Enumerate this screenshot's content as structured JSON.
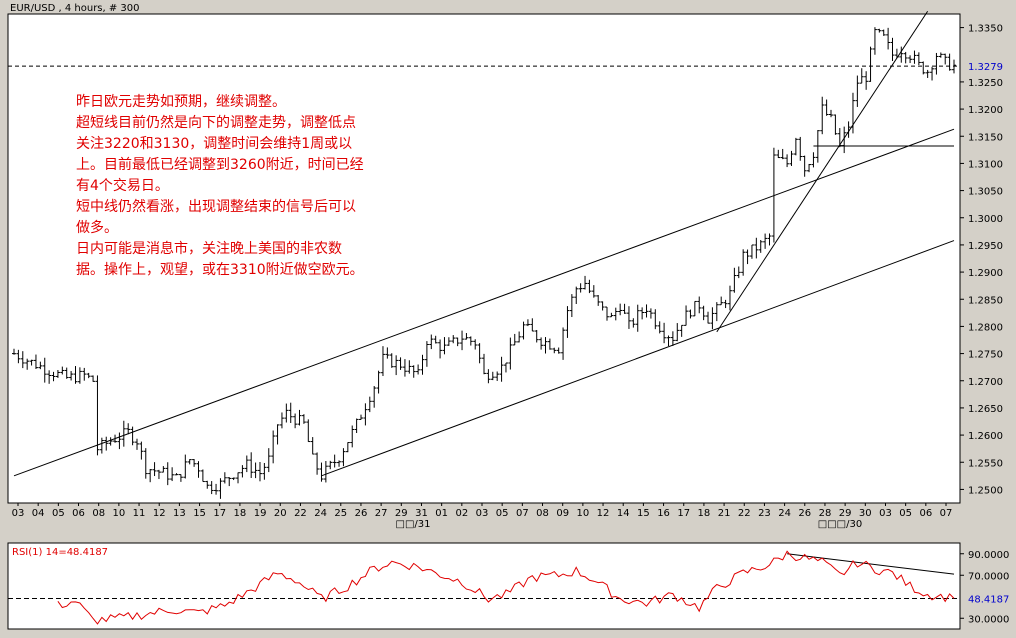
{
  "chart_data": [
    {
      "type": "ohlc",
      "symbol_label": "EUR/USD , 4 hours, # 300",
      "ylim": [
        1.2475,
        1.3375
      ],
      "y_ticks": [
        "1.2500",
        "1.2550",
        "1.2600",
        "1.2650",
        "1.2700",
        "1.2750",
        "1.2800",
        "1.2850",
        "1.2900",
        "1.2950",
        "1.3000",
        "1.3050",
        "1.3100",
        "1.3150",
        "1.3200",
        "1.3250",
        "1.3350"
      ],
      "last_price_label": "1.3279",
      "last_price": 1.3279,
      "x_ticks": [
        "03",
        "04",
        "05",
        "06",
        "08",
        "10",
        "11",
        "12",
        "13",
        "15",
        "17",
        "18",
        "19",
        "20",
        "22",
        "24",
        "25",
        "26",
        "27",
        "29",
        "31",
        "01",
        "02",
        "03",
        "05",
        "07",
        "08",
        "09",
        "10",
        "12",
        "14",
        "15",
        "16",
        "17",
        "18",
        "21",
        "22",
        "23",
        "24",
        "26",
        "28",
        "29",
        "30",
        "03",
        "05",
        "06",
        "07"
      ],
      "month_labels": [
        "□□/31",
        "□□□/30"
      ],
      "trendlines": [
        {
          "from": {
            "bar": 0,
            "price": 1.2525
          },
          "to": {
            "bar": 214,
            "price": 1.3163
          }
        },
        {
          "from": {
            "bar": 70,
            "price": 1.2525
          },
          "to": {
            "bar": 214,
            "price": 1.2958
          }
        },
        {
          "from": {
            "bar": 160,
            "price": 1.279
          },
          "to": {
            "bar": 208,
            "price": 1.338
          }
        },
        {
          "from": {
            "bar": 182,
            "price": 1.3132
          },
          "to": {
            "bar": 214,
            "price": 1.3132
          }
        }
      ],
      "annotation_lines": [
        "昨日欧元走势如预期，继续调整。",
        "超短线目前仍然是向下的调整走势，调整低点",
        "关注3220和3130，调整时间会维持1周或以",
        "上。目前最低已经调整到3260附近，时间已经",
        "有4个交易日。",
        "短中线仍然看涨，出现调整结束的信号后可以",
        "做多。",
        "日内可能是消息市，关注晚上美国的非农数",
        "据。操作上，观望，或在3310附近做空欧元。"
      ],
      "close_path": [
        [
          0,
          1.275
        ],
        [
          8,
          1.2718
        ],
        [
          12,
          1.2705
        ],
        [
          16,
          1.271
        ],
        [
          18,
          1.27
        ],
        [
          19,
          1.2575
        ],
        [
          22,
          1.259
        ],
        [
          26,
          1.2605
        ],
        [
          28,
          1.259
        ],
        [
          30,
          1.254
        ],
        [
          34,
          1.253
        ],
        [
          37,
          1.252
        ],
        [
          40,
          1.2555
        ],
        [
          42,
          1.254
        ],
        [
          44,
          1.2505
        ],
        [
          47,
          1.251
        ],
        [
          50,
          1.253
        ],
        [
          53,
          1.2545
        ],
        [
          56,
          1.253
        ],
        [
          58,
          1.2555
        ],
        [
          60,
          1.262
        ],
        [
          62,
          1.264
        ],
        [
          66,
          1.262
        ],
        [
          68,
          1.2555
        ],
        [
          70,
          1.2525
        ],
        [
          74,
          1.256
        ],
        [
          78,
          1.262
        ],
        [
          82,
          1.269
        ],
        [
          84,
          1.274
        ],
        [
          88,
          1.273
        ],
        [
          92,
          1.271
        ],
        [
          94,
          1.2775
        ],
        [
          98,
          1.276
        ],
        [
          102,
          1.278
        ],
        [
          105,
          1.277
        ],
        [
          107,
          1.271
        ],
        [
          111,
          1.2725
        ],
        [
          114,
          1.277
        ],
        [
          116,
          1.28
        ],
        [
          120,
          1.2775
        ],
        [
          124,
          1.276
        ],
        [
          126,
          1.283
        ],
        [
          128,
          1.287
        ],
        [
          130,
          1.288
        ],
        [
          132,
          1.285
        ],
        [
          134,
          1.283
        ],
        [
          136,
          1.2815
        ],
        [
          138,
          1.284
        ],
        [
          140,
          1.28
        ],
        [
          142,
          1.282
        ],
        [
          144,
          1.2835
        ],
        [
          146,
          1.281
        ],
        [
          148,
          1.279
        ],
        [
          150,
          1.278
        ],
        [
          152,
          1.281
        ],
        [
          154,
          1.283
        ],
        [
          156,
          1.284
        ],
        [
          158,
          1.2815
        ],
        [
          160,
          1.283
        ],
        [
          163,
          1.286
        ],
        [
          166,
          1.293
        ],
        [
          170,
          1.295
        ],
        [
          172,
          1.2965
        ],
        [
          173,
          1.311
        ],
        [
          176,
          1.31
        ],
        [
          178,
          1.315
        ],
        [
          180,
          1.309
        ],
        [
          182,
          1.312
        ],
        [
          184,
          1.32
        ],
        [
          186,
          1.318
        ],
        [
          188,
          1.313
        ],
        [
          190,
          1.317
        ],
        [
          192,
          1.325
        ],
        [
          194,
          1.326
        ],
        [
          196,
          1.334
        ],
        [
          198,
          1.333
        ],
        [
          200,
          1.33
        ],
        [
          202,
          1.331
        ],
        [
          204,
          1.33
        ],
        [
          206,
          1.328
        ],
        [
          208,
          1.327
        ],
        [
          210,
          1.33
        ],
        [
          212,
          1.3285
        ],
        [
          214,
          1.3279
        ]
      ]
    },
    {
      "type": "line",
      "label": "RSI(1) 14=48.4187",
      "ylim": [
        20,
        100
      ],
      "y_ticks": [
        "90.0000",
        "70.0000",
        "30.0000"
      ],
      "last_value_label": "48.4187",
      "last_value": 48.4187,
      "reference_lines": [
        48.4187
      ],
      "trendlines": [
        {
          "from": {
            "bar": 176,
            "value": 90
          },
          "to": {
            "bar": 214,
            "value": 71
          }
        }
      ],
      "path": [
        [
          10,
          42
        ],
        [
          14,
          46
        ],
        [
          18,
          28
        ],
        [
          24,
          30
        ],
        [
          30,
          34
        ],
        [
          36,
          38
        ],
        [
          42,
          35
        ],
        [
          48,
          42
        ],
        [
          54,
          56
        ],
        [
          60,
          72
        ],
        [
          64,
          66
        ],
        [
          70,
          48
        ],
        [
          76,
          60
        ],
        [
          82,
          76
        ],
        [
          86,
          82
        ],
        [
          92,
          78
        ],
        [
          96,
          72
        ],
        [
          102,
          64
        ],
        [
          108,
          48
        ],
        [
          112,
          52
        ],
        [
          118,
          68
        ],
        [
          124,
          70
        ],
        [
          128,
          74
        ],
        [
          132,
          66
        ],
        [
          138,
          48
        ],
        [
          144,
          44
        ],
        [
          150,
          52
        ],
        [
          156,
          40
        ],
        [
          160,
          58
        ],
        [
          166,
          72
        ],
        [
          172,
          80
        ],
        [
          176,
          90
        ],
        [
          180,
          86
        ],
        [
          184,
          82
        ],
        [
          188,
          70
        ],
        [
          192,
          82
        ],
        [
          196,
          76
        ],
        [
          200,
          72
        ],
        [
          204,
          60
        ],
        [
          208,
          52
        ],
        [
          212,
          50
        ],
        [
          214,
          48.4187
        ]
      ]
    }
  ]
}
